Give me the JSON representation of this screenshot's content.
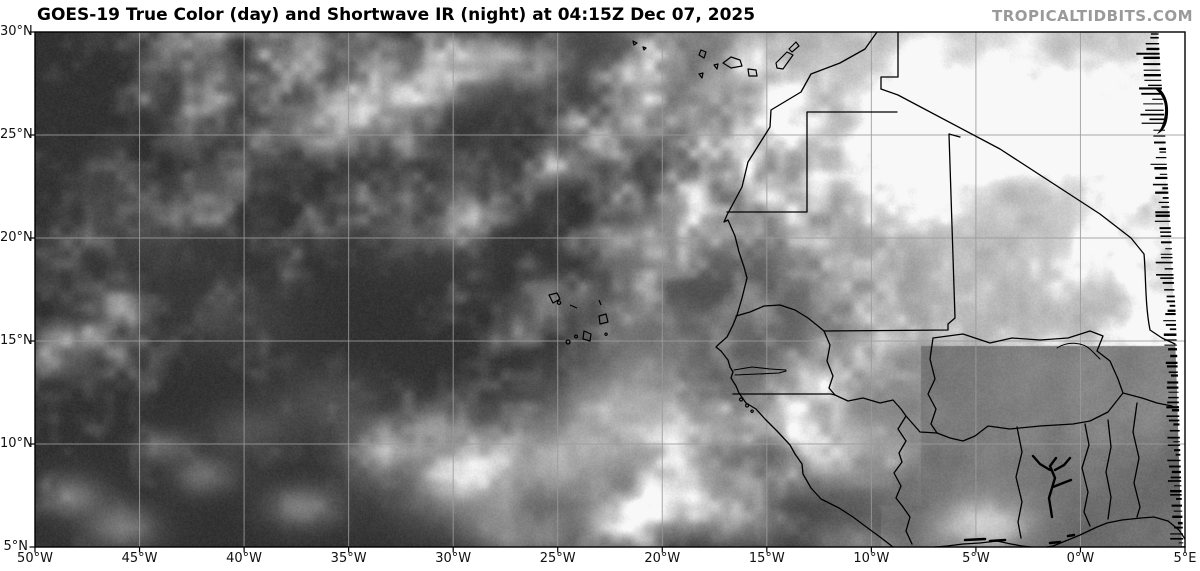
{
  "header": {
    "title": "GOES-19 True Color (day) and Shortwave IR (night) at 04:15Z Dec 07, 2025",
    "watermark": "TROPICALTIDBITS.COM"
  },
  "map": {
    "satellite": "GOES-19",
    "product": "True Color (day) and Shortwave IR (night)",
    "valid_time": "04:15Z Dec 07, 2025",
    "axes": {
      "lat_labels": [
        "30°N",
        "25°N",
        "20°N",
        "15°N",
        "10°N",
        "5°N"
      ],
      "lon_labels": [
        "50°W",
        "45°W",
        "40°W",
        "35°W",
        "30°W",
        "25°W",
        "20°W",
        "15°W",
        "10°W",
        "5°W",
        "0°W",
        "5°E"
      ]
    },
    "colors": {
      "ocean_dark": "#3f3f3f",
      "cloud_bright": "#f1f1f1",
      "land_gray": "#7b7b7b",
      "grid_line": "#9b9b9b",
      "geo_border": "#000000",
      "no_data_white": "#ffffff",
      "watermark_gray": "#9a9a9a",
      "title_black": "#000000"
    },
    "features": [
      "canary-islands",
      "madeira-islands",
      "cape-verde-islands",
      "west-africa-coastline",
      "country-borders",
      "gambia-river",
      "lake-volta",
      "niger-river",
      "coastal-lagoons",
      "satellite-scan-edge"
    ]
  }
}
